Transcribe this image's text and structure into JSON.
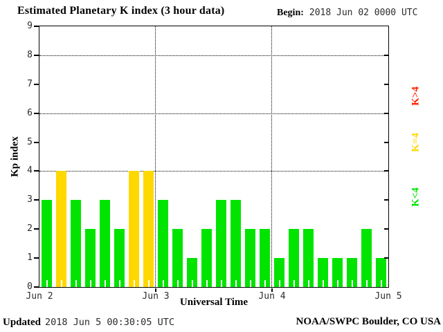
{
  "header": {
    "title": "Estimated Planetary K index (3 hour data)",
    "begin_label": "Begin:",
    "begin_value": "2018 Jun 02 0000 UTC"
  },
  "chart_data": {
    "type": "bar",
    "title": "Estimated Planetary K index (3 hour data)",
    "begin": "2018 Jun 02 0000 UTC",
    "xlabel": "Universal Time",
    "ylabel": "Kp index",
    "ylim": [
      0,
      9
    ],
    "yticks": [
      0,
      1,
      2,
      3,
      4,
      5,
      6,
      7,
      8,
      9
    ],
    "grid_y_values": [
      4,
      6,
      8
    ],
    "grid_x_day_boundaries": [
      "Jun 3",
      "Jun 4"
    ],
    "day_labels": [
      "Jun 2",
      "Jun 3",
      "Jun 4",
      "Jun 5"
    ],
    "bars_per_day": 8,
    "interval_hours": 3,
    "values": [
      3,
      4,
      3,
      2,
      3,
      2,
      4,
      4,
      3,
      2,
      1,
      2,
      3,
      3,
      2,
      2,
      1,
      2,
      2,
      1,
      1,
      1,
      2,
      1
    ],
    "colors": {
      "k_below_4": "#00e400",
      "k_equal_4": "#ffd800",
      "k_above_4": "#ff2200"
    },
    "legend": [
      {
        "label": "K>4",
        "color": "#ff2200",
        "y_value": 6.6
      },
      {
        "label": "K=4",
        "color": "#ffd800",
        "y_value": 5.0
      },
      {
        "label": "K<4",
        "color": "#00e400",
        "y_value": 3.1
      }
    ],
    "legend_position": "right-rotated"
  },
  "footer": {
    "updated_label": "Updated",
    "updated_value": "2018 Jun  5 00:30:05 UTC",
    "credit": "NOAA/SWPC Boulder, CO USA"
  }
}
